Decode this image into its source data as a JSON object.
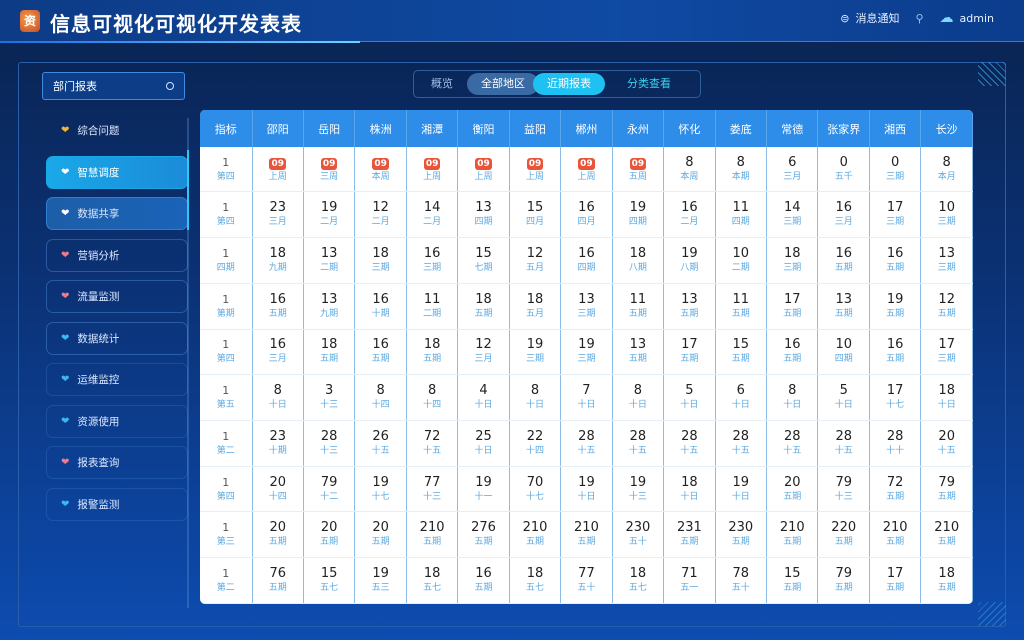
{
  "header": {
    "title": "信息可视化可视化开发表表",
    "logo": "资",
    "notice_label": "消息通知",
    "user_label": "admin"
  },
  "search": {
    "value": "部门报表"
  },
  "tabs": [
    {
      "label": "概览"
    },
    {
      "label": "全部地区"
    },
    {
      "label": "近期报表"
    },
    {
      "label": "分类查看"
    }
  ],
  "sidebar": {
    "items": [
      {
        "label": "综合问题",
        "icon_color": "#f2b53a"
      },
      {
        "label": "智慧调度",
        "icon_color": "#ffffff"
      },
      {
        "label": "数据共享",
        "icon_color": "#ffffff"
      },
      {
        "label": "营销分析",
        "icon_color": "#f07a8a"
      },
      {
        "label": "流量监测",
        "icon_color": "#f07a8a"
      },
      {
        "label": "数据统计",
        "icon_color": "#3ab8f0"
      },
      {
        "label": "运维监控",
        "icon_color": "#3ab8f0"
      },
      {
        "label": "资源使用",
        "icon_color": "#3ab8f0"
      },
      {
        "label": "报表查询",
        "icon_color": "#f07a8a"
      },
      {
        "label": "报警监测",
        "icon_color": "#3ab8f0"
      }
    ]
  },
  "table": {
    "headers": [
      "指标",
      "邵阳",
      "岳阳",
      "株洲",
      "湘潭",
      "衡阳",
      "益阳",
      "郴州",
      "永州",
      "怀化",
      "娄底",
      "常德",
      "张家界",
      "湘西",
      "长沙"
    ],
    "first_col": [
      {
        "v": "1",
        "s": "第四"
      },
      {
        "v": "1",
        "s": "第四"
      },
      {
        "v": "1",
        "s": "四期"
      },
      {
        "v": "1",
        "s": "第期"
      },
      {
        "v": "1",
        "s": "第四"
      },
      {
        "v": "1",
        "s": "第五"
      },
      {
        "v": "1",
        "s": "第二"
      },
      {
        "v": "1",
        "s": "第四"
      },
      {
        "v": "1",
        "s": "第三"
      },
      {
        "v": "1",
        "s": "第二"
      }
    ],
    "rows": [
      {
        "badge": true,
        "values": [
          "09",
          "09",
          "09",
          "09",
          "09",
          "09",
          "09",
          "09",
          "8",
          "8",
          "6",
          "0",
          "0",
          "8"
        ],
        "subs": [
          "上周",
          "三周",
          "本周",
          "上周",
          "上周",
          "上周",
          "上周",
          "五周",
          "本周",
          "本期",
          "三月",
          "五千",
          "三期",
          "本月"
        ]
      },
      {
        "values": [
          "23",
          "19",
          "12",
          "14",
          "13",
          "15",
          "16",
          "19",
          "16",
          "11",
          "14",
          "16",
          "17",
          "10"
        ],
        "subs": [
          "三月",
          "二月",
          "二月",
          "二月",
          "四期",
          "四月",
          "四月",
          "四期",
          "二月",
          "四期",
          "三期",
          "三月",
          "三期",
          "三期"
        ]
      },
      {
        "values": [
          "18",
          "13",
          "18",
          "16",
          "15",
          "12",
          "16",
          "18",
          "19",
          "10",
          "18",
          "16",
          "16",
          "13"
        ],
        "subs": [
          "九期",
          "二期",
          "三期",
          "三期",
          "七期",
          "五月",
          "四期",
          "八期",
          "八期",
          "二期",
          "三期",
          "五期",
          "五期",
          "三期"
        ]
      },
      {
        "values": [
          "16",
          "13",
          "16",
          "11",
          "18",
          "18",
          "13",
          "11",
          "13",
          "11",
          "17",
          "13",
          "19",
          "12"
        ],
        "subs": [
          "五期",
          "九期",
          "十期",
          "二期",
          "五期",
          "五月",
          "三期",
          "五期",
          "五期",
          "五期",
          "五期",
          "五期",
          "五期",
          "五期"
        ]
      },
      {
        "values": [
          "16",
          "18",
          "16",
          "18",
          "12",
          "19",
          "19",
          "13",
          "17",
          "15",
          "16",
          "10",
          "16",
          "17"
        ],
        "subs": [
          "三月",
          "五期",
          "五期",
          "五期",
          "三月",
          "三期",
          "三期",
          "五期",
          "五期",
          "五期",
          "五期",
          "四期",
          "五期",
          "三期"
        ]
      },
      {
        "values": [
          "8",
          "3",
          "8",
          "8",
          "4",
          "8",
          "7",
          "8",
          "5",
          "6",
          "8",
          "5",
          "17",
          "18"
        ],
        "subs": [
          "十日",
          "十三",
          "十四",
          "十四",
          "十日",
          "十日",
          "十日",
          "十日",
          "十日",
          "十日",
          "十日",
          "十日",
          "十七",
          "十日"
        ]
      },
      {
        "values": [
          "23",
          "28",
          "26",
          "72",
          "25",
          "22",
          "28",
          "28",
          "28",
          "28",
          "28",
          "28",
          "28",
          "20"
        ],
        "subs": [
          "十期",
          "十三",
          "十五",
          "十五",
          "十日",
          "十四",
          "十五",
          "十五",
          "十五",
          "十五",
          "十五",
          "十五",
          "十十",
          "十五"
        ]
      },
      {
        "values": [
          "20",
          "79",
          "19",
          "77",
          "19",
          "70",
          "19",
          "19",
          "18",
          "19",
          "20",
          "79",
          "72",
          "79"
        ],
        "subs": [
          "十四",
          "十二",
          "十七",
          "十三",
          "十一",
          "十七",
          "十日",
          "十三",
          "十日",
          "十日",
          "五期",
          "十三",
          "五期",
          "五期"
        ]
      },
      {
        "values": [
          "20",
          "20",
          "20",
          "210",
          "276",
          "210",
          "210",
          "230",
          "231",
          "230",
          "210",
          "220",
          "210",
          "210"
        ],
        "subs": [
          "五期",
          "五期",
          "五期",
          "五期",
          "五期",
          "五期",
          "五期",
          "五十",
          "五期",
          "五期",
          "五期",
          "五期",
          "五期",
          "五期"
        ]
      },
      {
        "values": [
          "76",
          "15",
          "19",
          "18",
          "16",
          "18",
          "77",
          "18",
          "71",
          "78",
          "15",
          "79",
          "17",
          "18"
        ],
        "subs": [
          "五期",
          "五七",
          "五三",
          "五七",
          "五期",
          "五七",
          "五十",
          "五七",
          "五一",
          "五十",
          "五期",
          "五期",
          "五期",
          "五期"
        ]
      }
    ]
  }
}
